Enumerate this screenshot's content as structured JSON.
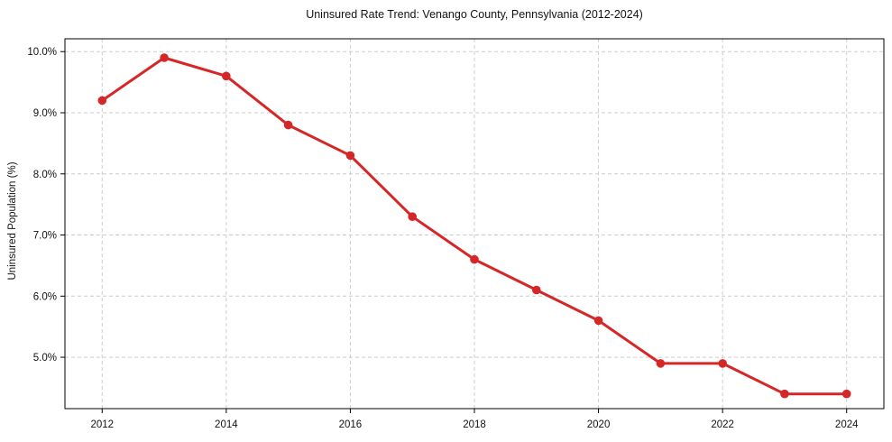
{
  "chart_data": {
    "type": "line",
    "title": "Uninsured Rate Trend: Venango County, Pennsylvania (2012-2024)",
    "xlabel": "",
    "ylabel": "Uninsured Population (%)",
    "x": [
      2012,
      2013,
      2014,
      2015,
      2016,
      2017,
      2018,
      2019,
      2020,
      2021,
      2022,
      2023,
      2024
    ],
    "series": [
      {
        "name": "Uninsured rate",
        "values": [
          9.2,
          9.9,
          9.6,
          8.8,
          8.3,
          7.3,
          6.6,
          6.1,
          5.6,
          4.9,
          4.9,
          4.4,
          4.4
        ]
      }
    ],
    "xticks": [
      2012,
      2014,
      2016,
      2018,
      2020,
      2022,
      2024
    ],
    "yticks": [
      5,
      6,
      7,
      8,
      9,
      10
    ],
    "ytick_labels": [
      "5.0%",
      "6.0%",
      "7.0%",
      "8.0%",
      "9.0%",
      "10.0%"
    ],
    "xlim": [
      2011.4,
      2024.6
    ],
    "ylim": [
      4.16,
      10.21
    ],
    "grid": true,
    "legend": false,
    "line_color": "#d62728",
    "marker": "circle",
    "background": "#ffffff"
  }
}
